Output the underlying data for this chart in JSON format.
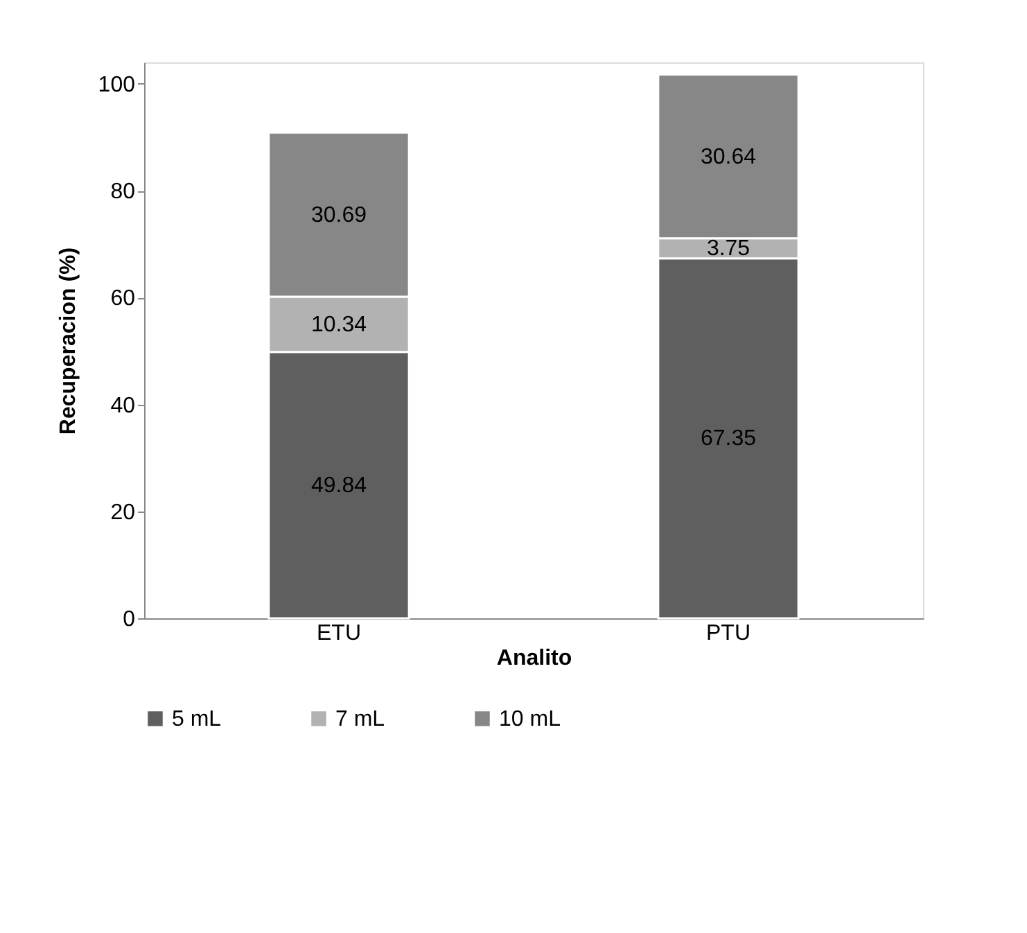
{
  "chart_data": {
    "type": "bar",
    "stacked": true,
    "xlabel": "Analito",
    "ylabel": "Recuperacion (%)",
    "categories": [
      "ETU",
      "PTU"
    ],
    "series": [
      {
        "name": "5 mL",
        "color": "#5f5f5f",
        "values": [
          49.84,
          67.35
        ]
      },
      {
        "name": "7 mL",
        "color": "#b2b2b2",
        "values": [
          10.34,
          3.75
        ]
      },
      {
        "name": "10 mL",
        "color": "#878787",
        "values": [
          30.69,
          30.64
        ]
      }
    ],
    "ylim": [
      0,
      104
    ],
    "yticks": [
      0,
      20,
      40,
      60,
      80,
      100
    ],
    "data_labels": true,
    "legend": "bottom",
    "grid": false
  }
}
